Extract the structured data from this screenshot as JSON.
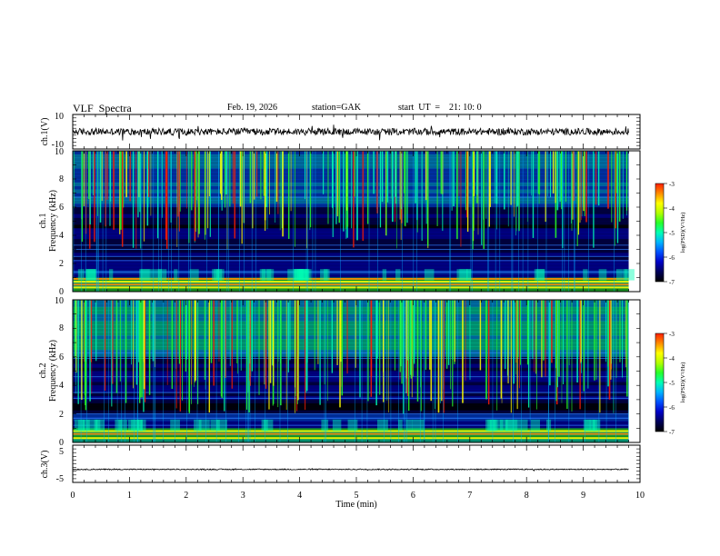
{
  "header": {
    "title": "VLF  Spectra",
    "date": "Feb. 19, 2026",
    "station": "station=GAK",
    "start": "start  UT  =    21: 10: 0"
  },
  "colorbar_cmap": [
    "#000000",
    "#00005a",
    "#0000c8",
    "#0050ff",
    "#00b4ff",
    "#00ffb4",
    "#28ff28",
    "#b4ff00",
    "#ffff00",
    "#ff8c00",
    "#ff1e00",
    "#ffffff"
  ],
  "chart_data": [
    {
      "type": "line",
      "panel": "ch1-waveform",
      "ylabel": "ch.1(V)",
      "ylim": [
        -10,
        10
      ],
      "yticks": [
        "10",
        "-10"
      ],
      "xlim": [
        0,
        10
      ],
      "baseline": 0,
      "noise_amplitude": 2,
      "line_color": "#000000"
    },
    {
      "type": "heatmap",
      "panel": "ch1-spectrogram",
      "ylabel": "Frequency  (kHz)",
      "channel_label": "ch.1",
      "ylim": [
        0,
        10
      ],
      "yticks": [
        "0",
        "2",
        "4",
        "6",
        "8",
        "10"
      ],
      "xlim": [
        0,
        10
      ],
      "data_end_min": 9.8,
      "colorbar": {
        "label": "log(PSD)(V²/Hz)",
        "range": [
          -7,
          -3
        ],
        "ticks": [
          "-3",
          "-4",
          "-5",
          "-6",
          "-7"
        ]
      }
    },
    {
      "type": "heatmap",
      "panel": "ch2-spectrogram",
      "ylabel": "Frequency  (kHz)",
      "channel_label": "ch.2",
      "ylim": [
        0,
        10
      ],
      "yticks": [
        "0",
        "2",
        "4",
        "6",
        "8",
        "10"
      ],
      "xlim": [
        0,
        10
      ],
      "data_end_min": 9.8,
      "colorbar": {
        "label": "log(PSD)(V²/Hz)",
        "range": [
          -7,
          -3
        ],
        "ticks": [
          "-3",
          "-4",
          "-5",
          "-6",
          "-7"
        ]
      }
    },
    {
      "type": "line",
      "panel": "ch3-waveform",
      "ylabel": "ch.3(V)",
      "ylim": [
        -5,
        5
      ],
      "yticks": [
        "5",
        "-5"
      ],
      "xlim": [
        0,
        10
      ],
      "baseline": -1.5,
      "noise_amplitude": 0.15,
      "line_color": "#000000"
    }
  ],
  "xaxis": {
    "label": "Time  (min)",
    "ticks": [
      "0",
      "1",
      "2",
      "3",
      "4",
      "5",
      "6",
      "7",
      "8",
      "9",
      "10"
    ]
  }
}
